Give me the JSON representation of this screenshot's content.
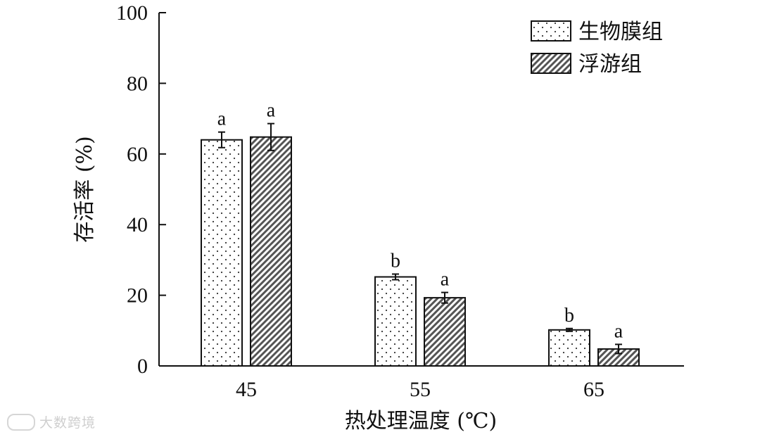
{
  "chart_data": {
    "type": "bar",
    "categories": [
      "45",
      "55",
      "65"
    ],
    "series": [
      {
        "name": "生物膜组",
        "values": [
          64,
          25.2,
          10.2
        ],
        "errors": [
          2.2,
          0.8,
          0.4
        ],
        "labels": [
          "a",
          "b",
          "b"
        ],
        "pattern": "dots"
      },
      {
        "name": "浮游组",
        "values": [
          64.8,
          19.3,
          4.8
        ],
        "errors": [
          3.8,
          1.5,
          1.3
        ],
        "labels": [
          "a",
          "a",
          "a"
        ],
        "pattern": "hatch"
      }
    ],
    "xlabel": "热处理温度 (℃)",
    "ylabel": "存活率 (%)",
    "ylim": [
      0,
      100
    ],
    "yticks": [
      0,
      20,
      40,
      60,
      80,
      100
    ],
    "grid": false,
    "legend": "top-right"
  },
  "watermark": "大数跨境"
}
